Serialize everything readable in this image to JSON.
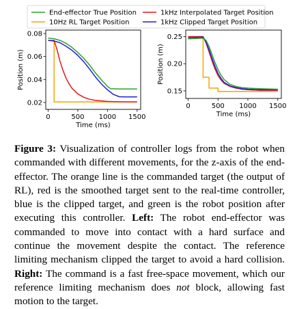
{
  "legend": {
    "entries": [
      {
        "label": "End-effector True Position",
        "color": "#2ca02c"
      },
      {
        "label": "1kHz Interpolated Target Position",
        "color": "#e31a1c"
      },
      {
        "label": "10Hz RL Target Position",
        "color": "#f5a400"
      },
      {
        "label": "1kHz Clipped Target Position",
        "color": "#1f1fd6"
      }
    ]
  },
  "chart_data": [
    {
      "type": "line",
      "panel": "left",
      "xlabel": "Time (ms)",
      "ylabel": "Position (m)",
      "xlim": [
        -40,
        1560
      ],
      "ylim": [
        0.014,
        0.083
      ],
      "xticks": [
        0,
        500,
        1000,
        1500
      ],
      "yticks": [
        0.02,
        0.04,
        0.06,
        0.08
      ],
      "ytick_labels": [
        "0.02",
        "0.04",
        "0.06",
        "0.08"
      ],
      "grid": false,
      "series": [
        {
          "name": "10Hz RL Target Position",
          "color": "#f5a400",
          "x": [
            0,
            100,
            100,
            1500
          ],
          "y": [
            0.074,
            0.074,
            0.0205,
            0.0205
          ]
        },
        {
          "name": "1kHz Interpolated Target Position",
          "color": "#e31a1c",
          "x": [
            0,
            100,
            150,
            200,
            250,
            300,
            350,
            400,
            500,
            600,
            700,
            800,
            1000,
            1200,
            1500
          ],
          "y": [
            0.074,
            0.074,
            0.066,
            0.056,
            0.048,
            0.0415,
            0.0365,
            0.0325,
            0.0275,
            0.0245,
            0.0228,
            0.0218,
            0.0209,
            0.0206,
            0.0205
          ]
        },
        {
          "name": "1kHz Clipped Target Position",
          "color": "#1f1fd6",
          "x": [
            0,
            100,
            200,
            300,
            400,
            500,
            600,
            700,
            800,
            900,
            1000,
            1100,
            1200,
            1300,
            1500
          ],
          "y": [
            0.074,
            0.0735,
            0.072,
            0.069,
            0.0655,
            0.061,
            0.0555,
            0.049,
            0.042,
            0.036,
            0.031,
            0.027,
            0.025,
            0.0248,
            0.0248
          ]
        },
        {
          "name": "End-effector True Position",
          "color": "#2ca02c",
          "x": [
            0,
            100,
            200,
            300,
            400,
            500,
            600,
            700,
            800,
            900,
            1000,
            1050,
            1200,
            1500
          ],
          "y": [
            0.076,
            0.0755,
            0.074,
            0.0715,
            0.068,
            0.0635,
            0.0585,
            0.0525,
            0.0455,
            0.0395,
            0.034,
            0.032,
            0.0318,
            0.0318
          ]
        }
      ]
    },
    {
      "type": "line",
      "panel": "right",
      "xlabel": "Time (ms)",
      "ylabel": "Position (m)",
      "xlim": [
        -40,
        1560
      ],
      "ylim": [
        0.136,
        0.262
      ],
      "xticks": [
        0,
        500,
        1000,
        1500
      ],
      "yticks": [
        0.15,
        0.2,
        0.25
      ],
      "ytick_labels": [
        "0.15",
        "0.20",
        "0.25"
      ],
      "grid": false,
      "series": [
        {
          "name": "10Hz RL Target Position",
          "color": "#f5a400",
          "x": [
            0,
            250,
            250,
            350,
            350,
            500,
            500,
            1500
          ],
          "y": [
            0.248,
            0.248,
            0.175,
            0.175,
            0.155,
            0.155,
            0.149,
            0.149
          ]
        },
        {
          "name": "1kHz Interpolated Target Position",
          "color": "#e31a1c",
          "x": [
            0,
            250,
            300,
            350,
            400,
            450,
            500,
            550,
            600,
            700,
            800,
            900,
            1000,
            1200,
            1500
          ],
          "y": [
            0.25,
            0.25,
            0.238,
            0.222,
            0.205,
            0.19,
            0.178,
            0.17,
            0.164,
            0.158,
            0.155,
            0.153,
            0.152,
            0.151,
            0.151
          ]
        },
        {
          "name": "1kHz Clipped Target Position",
          "color": "#1f1fd6",
          "x": [
            0,
            250,
            300,
            350,
            400,
            450,
            500,
            550,
            600,
            700,
            800,
            900,
            1000,
            1200,
            1500
          ],
          "y": [
            0.248,
            0.249,
            0.24,
            0.226,
            0.21,
            0.195,
            0.182,
            0.173,
            0.166,
            0.159,
            0.156,
            0.154,
            0.153,
            0.152,
            0.152
          ]
        },
        {
          "name": "End-effector True Position",
          "color": "#2ca02c",
          "x": [
            0,
            250,
            300,
            350,
            400,
            450,
            500,
            550,
            600,
            700,
            800,
            900,
            1000,
            1200,
            1500
          ],
          "y": [
            0.246,
            0.247,
            0.243,
            0.232,
            0.217,
            0.202,
            0.189,
            0.179,
            0.171,
            0.162,
            0.158,
            0.156,
            0.155,
            0.154,
            0.153
          ]
        }
      ]
    }
  ],
  "caption": {
    "label": "Figure 3:",
    "part1": " Visualization of controller logs from the robot when commanded with different movements, for the z-axis of the end-effector. The orange line is the commanded target (the output of RL), red is the smoothed target sent to the real-time controller, blue is the clipped target, and green is the robot position after executing this controller. ",
    "left_label": "Left:",
    "part2": " The robot end-effector was commanded to move into contact with a hard surface and continue the movement despite the contact. The reference limiting mechanism clipped the target to avoid a hard collision. ",
    "right_label": "Right:",
    "part3": " The command is a fast free-space movement, which our reference limiting mechanism does ",
    "emph": "not",
    "part4": " block, allowing fast motion to the target."
  }
}
